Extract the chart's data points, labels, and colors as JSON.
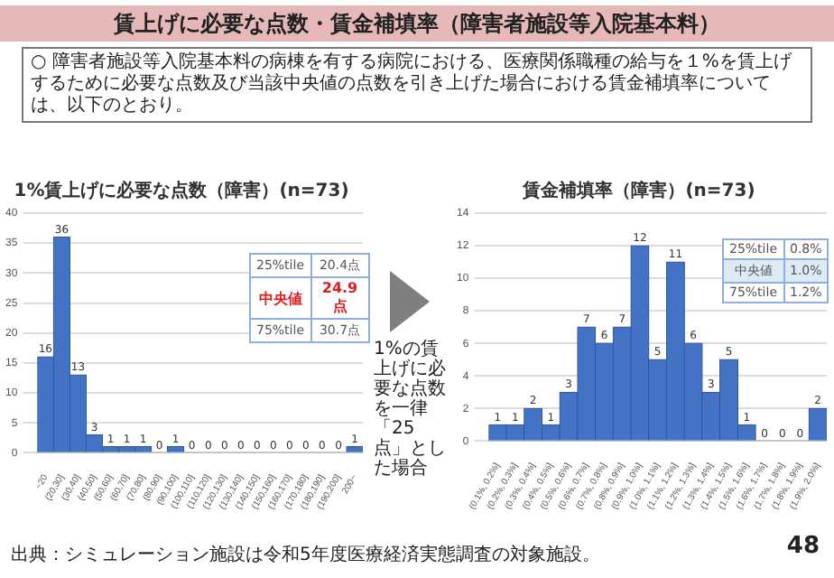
{
  "chart_data": [
    {
      "type": "other",
      "title": "賃上げに必要な点数・賃金補填率（障害者施設等入院基本料）",
      "subtitle": "○ 障害者施設等入院基本料の病棟を有する病院における、医療関係職種の給与を１%を賃上げするために必要な点数及び当該中央値の点数を引き上げた場合における賃金補填率については、以下のとおり。",
      "annotations": [
        "1%の賃上げに必要な点数を一律「25点」とした場合",
        "出典：シミュレーション施設は令和5年度医療経済実態調査の対象施設。",
        "48"
      ]
    },
    {
      "type": "bar",
      "title": "1%賃上げに必要な点数（障害）(n=73)",
      "categories": [
        "~20",
        "(20,30]",
        "(30,40]",
        "(40,50]",
        "(50,60]",
        "(60,70]",
        "(70,80]",
        "(80,90]",
        "(90,100]",
        "(100,110]",
        "(110,120]",
        "(120,130]",
        "(130,140]",
        "(140,150]",
        "(150,160]",
        "(160,170]",
        "(170,180]",
        "(180,190]",
        "(190,200]",
        "200~"
      ],
      "values": [
        16,
        36,
        13,
        3,
        1,
        1,
        1,
        0,
        1,
        0,
        0,
        0,
        0,
        0,
        0,
        0,
        0,
        0,
        0,
        1
      ],
      "color": "#4472c4",
      "ylim": [
        0,
        40
      ],
      "yticks": [
        0,
        5,
        10,
        15,
        20,
        25,
        30,
        35,
        40
      ],
      "grid": "y",
      "data_labels": true,
      "annotations": [
        "25%tile",
        "20.4点",
        "中央値",
        "24.9点",
        "75%tile",
        "30.7点"
      ]
    },
    {
      "type": "bar",
      "title": "賃金補填率（障害）(n=73)",
      "categories": [
        "(0.1%, 0.2%]",
        "(0.2%, 0.3%]",
        "(0.3%, 0.4%]",
        "(0.4%, 0.5%]",
        "(0.5%, 0.6%]",
        "(0.6%, 0.7%]",
        "(0.7%, 0.8%]",
        "(0.8%, 0.9%]",
        "(0.9%, 1.0%]",
        "(1.0%, 1.1%]",
        "(1.1%, 1.2%]",
        "(1.2%, 1.3%]",
        "(1.3%, 1.4%]",
        "(1.4%, 1.5%]",
        "(1.5%, 1.6%]",
        "(1.6%, 1.7%]",
        "(1.7%, 1.8%]",
        "(1.8%, 1.9%]",
        "(1.9%, 2.0%]"
      ],
      "values": [
        1,
        1,
        2,
        1,
        3,
        7,
        6,
        7,
        12,
        5,
        11,
        6,
        3,
        5,
        1,
        0,
        0,
        0,
        2
      ],
      "color": "#4472c4",
      "ylim": [
        0,
        14
      ],
      "yticks": [
        0,
        2,
        4,
        6,
        8,
        10,
        12,
        14
      ],
      "grid": "y",
      "data_labels": true,
      "annotations": [
        "25%tile",
        "0.8%",
        "中央値",
        "1.0%",
        "75%tile",
        "1.2%"
      ]
    }
  ]
}
